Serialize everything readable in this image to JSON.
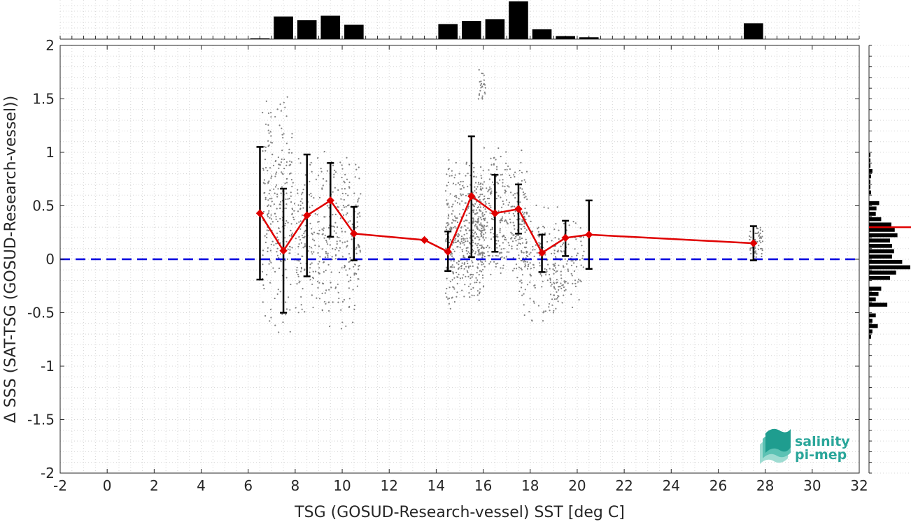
{
  "chart_data": {
    "type": "scatter",
    "title": "",
    "xlabel": "TSG (GOSUD-Research-vessel) SST [deg C]",
    "ylabel": "Δ SSS (SAT-TSG (GOSUD-Research-vessel))",
    "xlim": [
      -2,
      32
    ],
    "ylim": [
      -2,
      2
    ],
    "xticks": [
      -2,
      0,
      2,
      4,
      6,
      8,
      10,
      12,
      14,
      16,
      18,
      20,
      22,
      24,
      26,
      28,
      30,
      32
    ],
    "yticks": [
      -2,
      -1.5,
      -1,
      -0.5,
      0,
      0.5,
      1,
      1.5,
      2
    ],
    "grid": true,
    "zero_line": {
      "y": 0,
      "color": "#0000e0",
      "style": "dashed"
    },
    "binned_mean": {
      "color": "#e00000",
      "x": [
        6.5,
        7.5,
        8.5,
        9.5,
        10.5,
        13.5,
        14.5,
        15.5,
        16.5,
        17.5,
        18.5,
        19.5,
        20.5,
        27.5
      ],
      "y": [
        0.43,
        0.08,
        0.41,
        0.55,
        0.24,
        0.18,
        0.07,
        0.59,
        0.43,
        0.47,
        0.06,
        0.2,
        0.23,
        0.15
      ],
      "upper": [
        1.05,
        0.66,
        0.98,
        0.9,
        0.49,
        0.18,
        0.26,
        1.15,
        0.79,
        0.7,
        0.23,
        0.36,
        0.55,
        0.31
      ],
      "lower": [
        -0.19,
        -0.5,
        -0.16,
        0.21,
        -0.01,
        0.18,
        -0.11,
        0.02,
        0.07,
        0.24,
        -0.12,
        0.03,
        -0.09,
        -0.01
      ]
    },
    "scatter_color": "#808080",
    "scatter_clusters": [
      {
        "x": [
          6.6,
          7.9
        ],
        "y": [
          -0.75,
          1.65
        ],
        "n": 260
      },
      {
        "x": [
          7.9,
          10.8
        ],
        "y": [
          -0.65,
          1.05
        ],
        "n": 380
      },
      {
        "x": [
          14.4,
          16.1
        ],
        "y": [
          -0.55,
          0.95
        ],
        "n": 420
      },
      {
        "x": [
          15.5,
          17.9
        ],
        "y": [
          -0.3,
          1.1
        ],
        "n": 380
      },
      {
        "x": [
          17.6,
          19.2
        ],
        "y": [
          -0.65,
          0.55
        ],
        "n": 160
      },
      {
        "x": [
          19.0,
          20.3
        ],
        "y": [
          -0.45,
          0.4
        ],
        "n": 110
      },
      {
        "x": [
          27.3,
          27.9
        ],
        "y": [
          0.02,
          0.32
        ],
        "n": 60
      },
      {
        "x": [
          15.8,
          16.1
        ],
        "y": [
          1.5,
          1.78
        ],
        "n": 25
      }
    ],
    "top_histogram": {
      "bin_edges": [
        6,
        7,
        8,
        9,
        10,
        11,
        13,
        14,
        15,
        16,
        17,
        18,
        19,
        20,
        21,
        27,
        28
      ],
      "counts": [
        2,
        60,
        50,
        62,
        38,
        0,
        1,
        40,
        48,
        53,
        100,
        26,
        8,
        5,
        0,
        42
      ]
    },
    "right_histogram": {
      "bin_edges": [
        -0.75,
        -0.7,
        -0.65,
        -0.6,
        -0.55,
        -0.5,
        -0.45,
        -0.4,
        -0.35,
        -0.3,
        -0.25,
        -0.2,
        -0.15,
        -0.1,
        -0.05,
        0,
        0.05,
        0.1,
        0.15,
        0.2,
        0.25,
        0.3,
        0.35,
        0.4,
        0.45,
        0.5,
        0.55,
        0.6,
        0.65,
        0.7,
        0.75,
        0.8,
        0.85,
        0.9,
        0.95,
        1.0,
        1.05,
        1.1,
        1.15,
        1.2,
        1.25,
        1.3,
        1.35,
        1.4,
        1.45,
        1.5,
        1.55,
        1.6,
        1.65,
        1.7
      ],
      "counts": [
        3,
        5,
        13,
        5,
        10,
        0,
        27,
        10,
        14,
        18,
        0,
        31,
        40,
        61,
        49,
        34,
        37,
        34,
        31,
        42,
        38,
        33,
        18,
        10,
        11,
        15,
        0,
        3,
        2,
        2,
        3,
        5,
        2,
        2,
        2,
        0,
        0,
        0,
        0,
        0,
        0,
        0,
        0,
        0,
        0,
        0,
        0,
        0,
        0
      ],
      "mean_line_y": 0.3
    },
    "logo": {
      "line1": "salinity",
      "line2": "pi-mep"
    }
  }
}
